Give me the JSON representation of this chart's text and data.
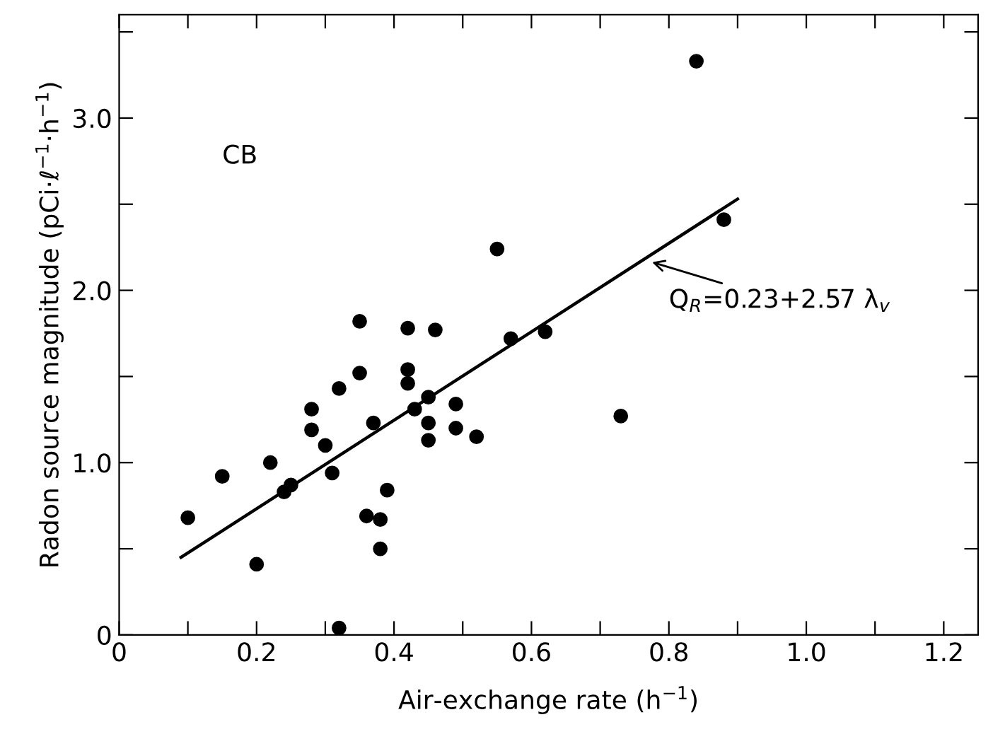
{
  "chart_data": {
    "type": "scatter",
    "xlabel": "Air-exchange rate (h$^{−1}$)",
    "ylabel": "Radon source magnitude (pCi·ℓ$^{−1}$·h$^{−1}$)",
    "xlim": [
      0,
      1.25
    ],
    "ylim": [
      0,
      3.6
    ],
    "xticks": [
      {
        "value": 0,
        "label": "0"
      },
      {
        "value": 0.1,
        "label": null
      },
      0.2,
      {
        "value": 0.3,
        "label": null
      },
      0.4,
      {
        "value": 0.5,
        "label": null
      },
      0.6,
      {
        "value": 0.7,
        "label": null
      },
      0.8,
      {
        "value": 0.9,
        "label": null
      },
      {
        "value": 1.0,
        "label": "1.0"
      },
      {
        "value": 1.1,
        "label": null
      },
      1.2
    ],
    "yticks": [
      {
        "value": 0,
        "label": "0"
      },
      {
        "value": 0.5,
        "label": null
      },
      {
        "value": 1.0,
        "label": "1.0"
      },
      {
        "value": 1.5,
        "label": null
      },
      {
        "value": 2.0,
        "label": "2.0"
      },
      {
        "value": 2.5,
        "label": null
      },
      {
        "value": 3.0,
        "label": "3.0"
      },
      {
        "value": 3.5,
        "label": null
      }
    ],
    "grid": false,
    "legend": false,
    "series": [
      {
        "color": "#000000",
        "marker": "circle",
        "x": [
          0.1,
          0.15,
          0.2,
          0.22,
          0.24,
          0.25,
          0.28,
          0.28,
          0.3,
          0.31,
          0.32,
          0.32,
          0.35,
          0.36,
          0.37,
          0.38,
          0.38,
          0.39,
          0.42,
          0.42,
          0.43,
          0.45,
          0.45,
          0.45,
          0.49,
          0.49,
          0.52,
          0.35,
          0.42,
          0.46,
          0.55,
          0.57,
          0.62,
          0.84,
          0.88,
          0.73
        ],
        "values": [
          0.68,
          0.92,
          0.41,
          1.0,
          0.83,
          0.87,
          1.31,
          1.19,
          1.1,
          0.94,
          1.43,
          0.04,
          1.52,
          0.69,
          1.23,
          0.67,
          0.5,
          0.84,
          1.54,
          1.46,
          1.31,
          1.38,
          1.23,
          1.13,
          1.34,
          1.2,
          1.15,
          1.82,
          1.78,
          1.77,
          2.24,
          1.72,
          1.76,
          3.33,
          2.41,
          1.27
        ]
      },
      {
        "type": "line",
        "color": "#000000",
        "marker": "none",
        "line_style": "solid",
        "x": [
          0.09,
          0.9
        ],
        "values": [
          0.45,
          2.53
        ]
      }
    ],
    "annotations": [
      "CB",
      {
        "text": "Q$_{R}$=0.23+2.57 λ$_{v}$",
        "x": 0.77,
        "y": 2.17
      }
    ]
  }
}
